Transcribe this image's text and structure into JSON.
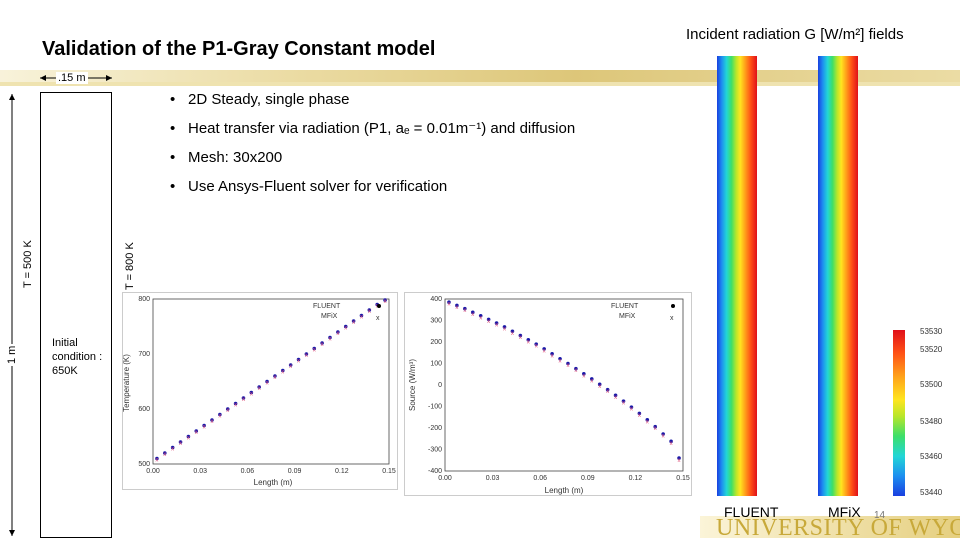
{
  "slide": {
    "title": "Validation of the P1-Gray Constant model",
    "domain_labels": {
      "width": ".15 m",
      "left_bc": "T = 500 K",
      "right_bc": "T = 800 K",
      "height": "1 m",
      "initial_condition": "Initial condition : 650K"
    },
    "bullets": [
      "2D Steady, single phase",
      "Heat transfer via radiation (P1, aₑ = 0.01m⁻¹) and diffusion",
      "Mesh: 30x200",
      "Use Ansys-Fluent solver for verification"
    ],
    "fields_title": "Incident radiation G [W/m²] fields",
    "field_captions": {
      "left": "FLUENT",
      "right": "MFiX"
    },
    "legend_ticks": [
      "53530",
      "53520",
      "53500",
      "53480",
      "53460",
      "53440"
    ],
    "page_number": "14",
    "university": "UNIVERSITY OF WYOMING",
    "colors": {
      "fluent": "#1a1aa8",
      "mfix": "#e0507a",
      "gold": "#c8a93a"
    }
  },
  "chart_data": [
    {
      "type": "scatter",
      "title": "",
      "xlabel": "Length (m)",
      "ylabel": "Temperature (K)",
      "xlim": [
        0.0,
        0.15
      ],
      "ylim": [
        500,
        800
      ],
      "xticks": [
        "0.00",
        "0.03",
        "0.06",
        "0.09",
        "0.12",
        "0.15"
      ],
      "yticks": [
        "800",
        "700",
        "600",
        "500"
      ],
      "series": [
        {
          "name": "FLUENT",
          "x": [
            0.0025,
            0.0075,
            0.0125,
            0.0175,
            0.0225,
            0.0275,
            0.0325,
            0.0375,
            0.0425,
            0.0475,
            0.0525,
            0.0575,
            0.0625,
            0.0675,
            0.0725,
            0.0775,
            0.0825,
            0.0875,
            0.0925,
            0.0975,
            0.1025,
            0.1075,
            0.1125,
            0.1175,
            0.1225,
            0.1275,
            0.1325,
            0.1375,
            0.1425,
            0.1475
          ],
          "y": [
            510,
            520,
            530,
            540,
            550,
            560,
            570,
            580,
            590,
            600,
            610,
            620,
            630,
            640,
            650,
            660,
            670,
            680,
            690,
            700,
            710,
            720,
            730,
            740,
            750,
            760,
            770,
            780,
            790,
            798
          ]
        },
        {
          "name": "MFiX",
          "x": [
            0.0025,
            0.0075,
            0.0125,
            0.0175,
            0.0225,
            0.0275,
            0.0325,
            0.0375,
            0.0425,
            0.0475,
            0.0525,
            0.0575,
            0.0625,
            0.0675,
            0.0725,
            0.0775,
            0.0825,
            0.0875,
            0.0925,
            0.0975,
            0.1025,
            0.1075,
            0.1125,
            0.1175,
            0.1225,
            0.1275,
            0.1325,
            0.1375,
            0.1425,
            0.1475
          ],
          "y": [
            508,
            518,
            528,
            538,
            548,
            558,
            568,
            578,
            588,
            598,
            608,
            618,
            628,
            638,
            648,
            658,
            668,
            678,
            688,
            698,
            708,
            718,
            728,
            738,
            748,
            758,
            768,
            778,
            788,
            796
          ]
        }
      ]
    },
    {
      "type": "scatter",
      "title": "",
      "xlabel": "Length (m)",
      "ylabel": "Source (W/m³)",
      "xlim": [
        0.0,
        0.15
      ],
      "ylim": [
        -400,
        400
      ],
      "xticks": [
        "0.00",
        "0.03",
        "0.06",
        "0.09",
        "0.12",
        "0.15"
      ],
      "yticks": [
        "400",
        "300",
        "200",
        "100",
        "0",
        "-100",
        "-200",
        "-300",
        "-400"
      ],
      "series": [
        {
          "name": "FLUENT",
          "x": [
            0.0025,
            0.0075,
            0.0125,
            0.0175,
            0.0225,
            0.0275,
            0.0325,
            0.0375,
            0.0425,
            0.0475,
            0.0525,
            0.0575,
            0.0625,
            0.0675,
            0.0725,
            0.0775,
            0.0825,
            0.0875,
            0.0925,
            0.0975,
            0.1025,
            0.1075,
            0.1125,
            0.1175,
            0.1225,
            0.1275,
            0.1325,
            0.1375,
            0.1425,
            0.1475
          ],
          "y": [
            385,
            370,
            355,
            338,
            322,
            305,
            288,
            270,
            250,
            230,
            210,
            190,
            168,
            145,
            122,
            100,
            76,
            52,
            28,
            3,
            -22,
            -48,
            -75,
            -103,
            -132,
            -162,
            -194,
            -228,
            -262,
            -340
          ]
        },
        {
          "name": "MFiX",
          "x": [
            0.0025,
            0.0075,
            0.0125,
            0.0175,
            0.0225,
            0.0275,
            0.0325,
            0.0375,
            0.0425,
            0.0475,
            0.0525,
            0.0575,
            0.0625,
            0.0675,
            0.0725,
            0.0775,
            0.0825,
            0.0875,
            0.0925,
            0.0975,
            0.1025,
            0.1075,
            0.1125,
            0.1175,
            0.1225,
            0.1275,
            0.1325,
            0.1375,
            0.1425,
            0.1475
          ],
          "y": [
            378,
            363,
            348,
            331,
            315,
            298,
            281,
            263,
            243,
            223,
            203,
            183,
            161,
            138,
            115,
            93,
            69,
            45,
            21,
            -4,
            -29,
            -55,
            -82,
            -110,
            -139,
            -169,
            -201,
            -235,
            -269,
            -348
          ]
        }
      ]
    }
  ]
}
